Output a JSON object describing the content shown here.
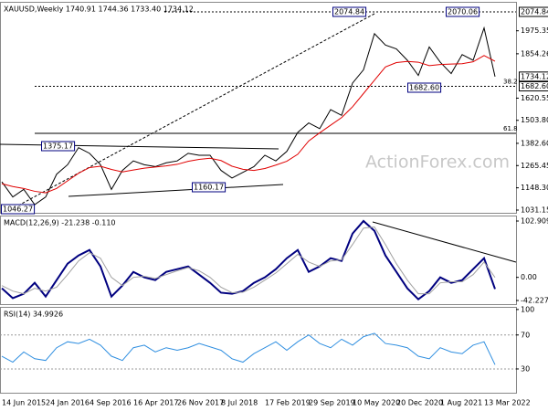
{
  "chart_data": [
    {
      "type": "line",
      "title": "XAUUSD,Weekly  1740.91 1744.36 1733.40 1734.12",
      "ylim": [
        1016.7,
        2123
      ],
      "yticks": [
        {
          "value": 1031.15,
          "label": "1031.15"
        },
        {
          "value": 1148.3,
          "label": "1148.30"
        },
        1265.45,
        {
          "value": 1382.6,
          "label": "1382.60"
        },
        {
          "value": 1503.8,
          "label": "1503.80"
        },
        1620.55,
        1854.26,
        1975.35
      ],
      "series": [
        {
          "color": "#000000",
          "values": [
            1180,
            1100,
            1140,
            1060,
            1100,
            1220,
            1270,
            1360,
            1330,
            1270,
            1140,
            1240,
            1290,
            1270,
            1260,
            1280,
            1290,
            1330,
            1320,
            1320,
            1240,
            1200,
            1230,
            1260,
            1320,
            1290,
            1340,
            1440,
            1490,
            1460,
            1560,
            1530,
            1700,
            1770,
            1960,
            1900,
            1880,
            1820,
            1740,
            1890,
            1810,
            1750,
            1850,
            1820,
            1990,
            1734.12
          ]
        },
        {
          "color": "#e00000",
          "values": [
            1170,
            1155,
            1145,
            1130,
            1122,
            1145,
            1185,
            1225,
            1255,
            1262,
            1245,
            1232,
            1242,
            1252,
            1258,
            1264,
            1272,
            1288,
            1298,
            1304,
            1292,
            1262,
            1246,
            1240,
            1250,
            1268,
            1288,
            1325,
            1395,
            1438,
            1478,
            1518,
            1575,
            1645,
            1715,
            1785,
            1808,
            1814,
            1810,
            1792,
            1798,
            1800,
            1802,
            1812,
            1845,
            1815
          ]
        }
      ],
      "price_marks": [
        {
          "value": 2074.84,
          "label": "2074.84"
        },
        {
          "value": 1734.12,
          "label": "1734.12"
        },
        {
          "value": 1682.6,
          "label": "1682.60"
        }
      ],
      "fib_levels": [
        {
          "value": 1682.6,
          "label": "38.2"
        },
        {
          "value": 1435,
          "label": "61.8"
        }
      ],
      "annotations": [
        "2074.84",
        "2070.06",
        "1682.60",
        "1375.17",
        "1160.17",
        "1046.27"
      ],
      "watermark": "ActionForex.com"
    },
    {
      "type": "line",
      "title": "MACD(12,26,9) -21.238 -0.110",
      "ylim": [
        -48.9,
        111.25
      ],
      "yticks": [
        102.909,
        {
          "value": 0,
          "label": "0.00"
        },
        -42.227
      ],
      "series": [
        {
          "color": "#00007f",
          "values": [
            -20,
            -38,
            -30,
            -10,
            -35,
            -5,
            25,
            40,
            50,
            20,
            -35,
            -15,
            10,
            0,
            -5,
            10,
            15,
            20,
            5,
            -10,
            -28,
            -30,
            -25,
            -10,
            0,
            15,
            35,
            50,
            10,
            20,
            35,
            30,
            80,
            103,
            85,
            40,
            10,
            -20,
            -40,
            -25,
            0,
            -10,
            -5,
            15,
            35,
            -21.238
          ]
        },
        {
          "color": "#a0a0a0",
          "values": [
            -15,
            -25,
            -30,
            -20,
            -25,
            -18,
            5,
            30,
            45,
            35,
            0,
            -15,
            0,
            2,
            -2,
            5,
            12,
            18,
            12,
            0,
            -18,
            -28,
            -27,
            -18,
            -5,
            8,
            25,
            42,
            28,
            20,
            30,
            32,
            60,
            90,
            92,
            60,
            25,
            -5,
            -30,
            -30,
            -10,
            -8,
            -8,
            5,
            28,
            -0.11
          ]
        }
      ]
    },
    {
      "type": "line",
      "title": "RSI(14) 34.9926",
      "ylim": [
        2,
        102
      ],
      "yticks": [
        100,
        70,
        30
      ],
      "series": [
        {
          "color": "#2e8ee0",
          "values": [
            45,
            38,
            50,
            42,
            40,
            55,
            62,
            60,
            65,
            58,
            45,
            40,
            55,
            58,
            50,
            55,
            52,
            55,
            60,
            56,
            52,
            42,
            38,
            48,
            55,
            62,
            52,
            62,
            70,
            60,
            55,
            65,
            58,
            68,
            72,
            60,
            58,
            55,
            45,
            42,
            55,
            50,
            48,
            58,
            62,
            34.9926
          ]
        }
      ],
      "categories": [
        "14 Jun 2015",
        null,
        null,
        null,
        "24 Jan 2016",
        null,
        null,
        null,
        "4 Sep 2016",
        null,
        null,
        null,
        "16 Apr 2017",
        null,
        null,
        null,
        "26 Nov 2017",
        null,
        null,
        null,
        "8 Jul 2018",
        null,
        null,
        null,
        "17 Feb 2019",
        null,
        null,
        null,
        "29 Sep 2019",
        null,
        null,
        null,
        "10 May 2020",
        null,
        null,
        null,
        "20 Dec 2020",
        null,
        null,
        null,
        "1 Aug 2021",
        null,
        null,
        null,
        "13 Mar 2022",
        null
      ]
    }
  ]
}
